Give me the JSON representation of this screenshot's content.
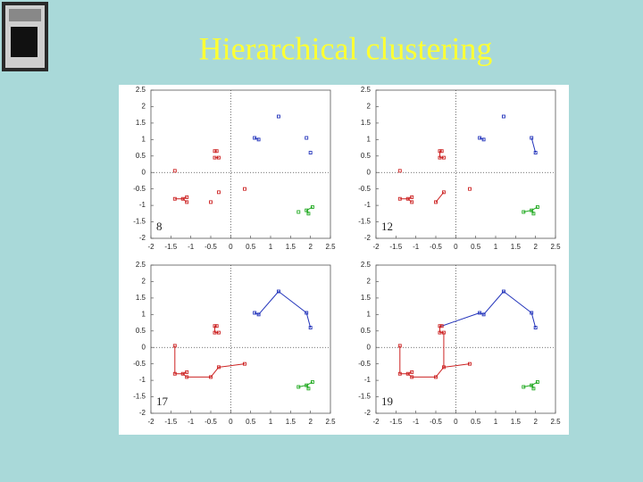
{
  "title": "Hierarchical clustering",
  "chart_data": [
    {
      "type": "scatter",
      "annotation": "8",
      "xlim": [
        -2,
        2.5
      ],
      "ylim": [
        -2,
        2.5
      ],
      "xticks": [
        -2,
        -1.5,
        -1,
        -0.5,
        0,
        0.5,
        1,
        1.5,
        2,
        2.5
      ],
      "yticks": [
        -2,
        -1.5,
        -1,
        -0.5,
        0,
        0.5,
        1,
        1.5,
        2,
        2.5
      ],
      "series": [
        {
          "color": "#cc2222",
          "x": [
            -0.4,
            -0.35,
            -0.4,
            -0.3,
            -1.4,
            -1.4,
            -1.2,
            -1.1,
            -1.1,
            -0.3,
            -0.5,
            0.35
          ],
          "y": [
            0.65,
            0.65,
            0.45,
            0.45,
            0.05,
            -0.8,
            -0.8,
            -0.75,
            -0.9,
            -0.6,
            -0.9,
            -0.5
          ]
        },
        {
          "color": "#2233bb",
          "x": [
            1.2,
            0.6,
            0.7,
            1.9,
            2.0
          ],
          "y": [
            1.7,
            1.05,
            1.0,
            1.05,
            0.6
          ]
        },
        {
          "color": "#22aa22",
          "x": [
            1.7,
            1.9,
            2.05,
            1.95
          ],
          "y": [
            -1.2,
            -1.15,
            -1.05,
            -1.25
          ]
        }
      ]
    },
    {
      "type": "scatter",
      "annotation": "12",
      "xlim": [
        -2,
        2.5
      ],
      "ylim": [
        -2,
        2.5
      ],
      "xticks": [
        -2,
        -1.5,
        -1,
        -0.5,
        0,
        0.5,
        1,
        1.5,
        2,
        2.5
      ],
      "yticks": [
        -2,
        -1.5,
        -1,
        -0.5,
        0,
        0.5,
        1,
        1.5,
        2,
        2.5
      ],
      "series": [
        {
          "color": "#cc2222",
          "x": [
            -0.4,
            -0.35,
            -0.4,
            -0.3,
            -1.4,
            -1.4,
            -1.2,
            -1.1,
            -1.1,
            -0.3,
            -0.5,
            0.35
          ],
          "y": [
            0.65,
            0.65,
            0.45,
            0.45,
            0.05,
            -0.8,
            -0.8,
            -0.75,
            -0.9,
            -0.6,
            -0.9,
            -0.5
          ]
        },
        {
          "color": "#2233bb",
          "x": [
            1.2,
            0.6,
            0.7,
            1.9,
            2.0
          ],
          "y": [
            1.7,
            1.05,
            1.0,
            1.05,
            0.6
          ]
        },
        {
          "color": "#22aa22",
          "x": [
            1.7,
            1.9,
            2.05,
            1.95
          ],
          "y": [
            -1.2,
            -1.15,
            -1.05,
            -1.25
          ]
        }
      ]
    },
    {
      "type": "scatter",
      "annotation": "17",
      "xlim": [
        -2,
        2.5
      ],
      "ylim": [
        -2,
        2.5
      ],
      "xticks": [
        -2,
        -1.5,
        -1,
        -0.5,
        0,
        0.5,
        1,
        1.5,
        2,
        2.5
      ],
      "yticks": [
        -2,
        -1.5,
        -1,
        -0.5,
        0,
        0.5,
        1,
        1.5,
        2,
        2.5
      ],
      "series": [
        {
          "color": "#cc2222",
          "x": [
            -0.4,
            -0.35,
            -0.4,
            -0.3,
            -1.4,
            -1.4,
            -1.2,
            -1.1,
            -1.1,
            -0.3,
            -0.5,
            0.35
          ],
          "y": [
            0.65,
            0.65,
            0.45,
            0.45,
            0.05,
            -0.8,
            -0.8,
            -0.75,
            -0.9,
            -0.6,
            -0.9,
            -0.5
          ]
        },
        {
          "color": "#2233bb",
          "x": [
            1.2,
            0.6,
            0.7,
            1.9,
            2.0
          ],
          "y": [
            1.7,
            1.05,
            1.0,
            1.05,
            0.6
          ]
        },
        {
          "color": "#22aa22",
          "x": [
            1.7,
            1.9,
            2.05,
            1.95
          ],
          "y": [
            -1.2,
            -1.15,
            -1.05,
            -1.25
          ]
        }
      ]
    },
    {
      "type": "scatter",
      "annotation": "19",
      "xlim": [
        -2,
        2.5
      ],
      "ylim": [
        -2,
        2.5
      ],
      "xticks": [
        -2,
        -1.5,
        -1,
        -0.5,
        0,
        0.5,
        1,
        1.5,
        2,
        2.5
      ],
      "yticks": [
        -2,
        -1.5,
        -1,
        -0.5,
        0,
        0.5,
        1,
        1.5,
        2,
        2.5
      ],
      "series": [
        {
          "color": "#cc2222",
          "x": [
            -0.4,
            -0.35,
            -0.4,
            -0.3,
            -1.4,
            -1.4,
            -1.2,
            -1.1,
            -1.1,
            -0.3,
            -0.5,
            0.35
          ],
          "y": [
            0.65,
            0.65,
            0.45,
            0.45,
            0.05,
            -0.8,
            -0.8,
            -0.75,
            -0.9,
            -0.6,
            -0.9,
            -0.5
          ]
        },
        {
          "color": "#2233bb",
          "x": [
            1.2,
            0.6,
            0.7,
            1.9,
            2.0
          ],
          "y": [
            1.7,
            1.05,
            1.0,
            1.05,
            0.6
          ]
        },
        {
          "color": "#22aa22",
          "x": [
            1.7,
            1.9,
            2.05,
            1.95
          ],
          "y": [
            -1.2,
            -1.15,
            -1.05,
            -1.25
          ]
        }
      ]
    }
  ]
}
